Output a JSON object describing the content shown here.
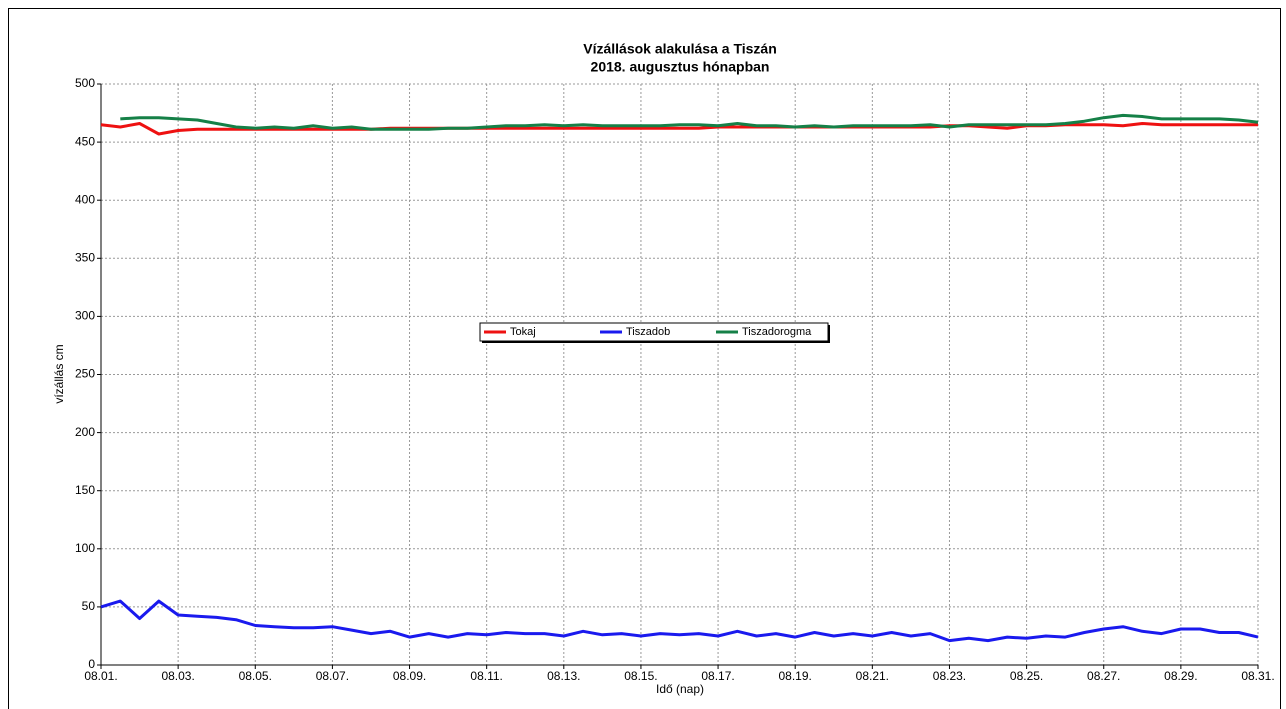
{
  "chart_data": {
    "type": "line",
    "title": "Vízállások alakulása a Tiszán",
    "subtitle": "2018. augusztus hónapban",
    "xlabel": "Idő (nap)",
    "ylabel": "vízállás cm",
    "x": [
      1,
      1.5,
      2,
      2.5,
      3,
      3.5,
      4,
      4.5,
      5,
      5.5,
      6,
      6.5,
      7,
      7.5,
      8,
      8.5,
      9,
      9.5,
      10,
      10.5,
      11,
      11.5,
      12,
      12.5,
      13,
      13.5,
      14,
      14.5,
      15,
      15.5,
      16,
      16.5,
      17,
      17.5,
      18,
      18.5,
      19,
      19.5,
      20,
      20.5,
      21,
      21.5,
      22,
      22.5,
      23,
      23.5,
      24,
      24.5,
      25,
      25.5,
      26,
      26.5,
      27,
      27.5,
      28,
      28.5,
      29,
      29.5,
      30,
      30.5,
      31
    ],
    "series": [
      {
        "name": "Tokaj",
        "color": "#ee1111",
        "values": [
          465,
          463,
          466,
          457,
          460,
          461,
          461,
          461,
          461,
          461,
          461,
          461,
          461,
          461,
          461,
          462,
          462,
          462,
          462,
          462,
          462,
          462,
          462,
          462,
          462,
          462,
          462,
          462,
          462,
          462,
          462,
          462,
          463,
          463,
          463,
          463,
          463,
          463,
          463,
          463,
          463,
          463,
          463,
          463,
          464,
          464,
          463,
          462,
          464,
          464,
          465,
          465,
          465,
          464,
          466,
          465,
          465,
          465,
          465,
          465,
          465
        ]
      },
      {
        "name": "Tiszadob",
        "color": "#1a1aee",
        "values": [
          50,
          55,
          40,
          55,
          43,
          42,
          41,
          39,
          34,
          33,
          32,
          32,
          33,
          30,
          27,
          29,
          24,
          27,
          24,
          27,
          26,
          28,
          27,
          27,
          25,
          29,
          26,
          27,
          25,
          27,
          26,
          27,
          25,
          29,
          25,
          27,
          24,
          28,
          25,
          27,
          25,
          28,
          25,
          27,
          21,
          23,
          21,
          24,
          23,
          25,
          24,
          28,
          31,
          33,
          29,
          27,
          31,
          31,
          28,
          28,
          24
        ]
      },
      {
        "name": "Tiszadorogma",
        "color": "#158047",
        "values": [
          null,
          470,
          471,
          471,
          470,
          469,
          466,
          463,
          462,
          463,
          462,
          464,
          462,
          463,
          461,
          461,
          461,
          461,
          462,
          462,
          463,
          464,
          464,
          465,
          464,
          465,
          464,
          464,
          464,
          464,
          465,
          465,
          464,
          466,
          464,
          464,
          463,
          464,
          463,
          464,
          464,
          464,
          464,
          465,
          463,
          465,
          465,
          465,
          465,
          465,
          466,
          468,
          471,
          473,
          472,
          470,
          470,
          470,
          470,
          469,
          467
        ]
      }
    ],
    "xlim": [
      1,
      31
    ],
    "xticks": [
      {
        "value": 1,
        "label": "08.01."
      },
      {
        "value": 3,
        "label": "08.03."
      },
      {
        "value": 5,
        "label": "08.05."
      },
      {
        "value": 7,
        "label": "08.07."
      },
      {
        "value": 9,
        "label": "08.09."
      },
      {
        "value": 11,
        "label": "08.11."
      },
      {
        "value": 13,
        "label": "08.13."
      },
      {
        "value": 15,
        "label": "08.15."
      },
      {
        "value": 17,
        "label": "08.17."
      },
      {
        "value": 19,
        "label": "08.19."
      },
      {
        "value": 21,
        "label": "08.21."
      },
      {
        "value": 23,
        "label": "08.23."
      },
      {
        "value": 25,
        "label": "08.25."
      },
      {
        "value": 27,
        "label": "08.27."
      },
      {
        "value": 29,
        "label": "08.29."
      },
      {
        "value": 31,
        "label": "08.31."
      }
    ],
    "ylim": [
      0,
      500
    ],
    "yticks": [
      0,
      50,
      100,
      150,
      200,
      250,
      300,
      350,
      400,
      450,
      500
    ],
    "grid": true,
    "legend": "center"
  }
}
